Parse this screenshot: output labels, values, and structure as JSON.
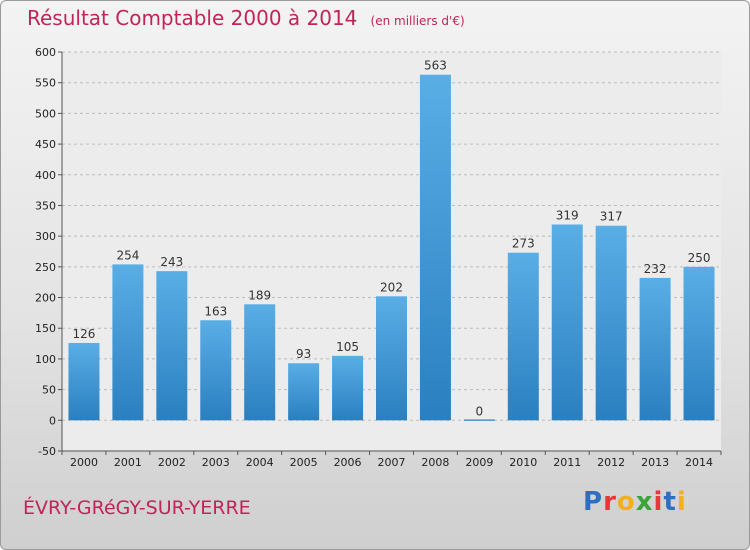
{
  "header": {
    "title": "Résultat Comptable 2000 à 2014",
    "subtitle": "(en milliers d'€)"
  },
  "footer": {
    "town": "ÉVRY-GRéGY-SUR-YERRE",
    "logo_letters": [
      "P",
      "r",
      "o",
      "x",
      "i",
      "t",
      "i"
    ],
    "logo_colors": [
      "#2d6fc0",
      "#e8373a",
      "#f2b01e",
      "#3aa33a",
      "#e8373a",
      "#2d6fc0",
      "#f2b01e"
    ]
  },
  "chart_data": {
    "type": "bar",
    "categories": [
      "2000",
      "2001",
      "2002",
      "2003",
      "2004",
      "2005",
      "2006",
      "2007",
      "2008",
      "2009",
      "2010",
      "2011",
      "2012",
      "2013",
      "2014"
    ],
    "values": [
      126,
      254,
      243,
      163,
      189,
      93,
      105,
      202,
      563,
      0,
      273,
      319,
      317,
      232,
      250
    ],
    "ylim": [
      -50,
      600
    ],
    "yticks": [
      -50,
      0,
      50,
      100,
      150,
      200,
      250,
      300,
      350,
      400,
      450,
      500,
      550,
      600
    ],
    "grid": true,
    "colors": {
      "bar_light": "#5aaee6",
      "bar_dark": "#2a7fc0",
      "grid": "#bdbdbd",
      "axis": "#555555"
    }
  }
}
